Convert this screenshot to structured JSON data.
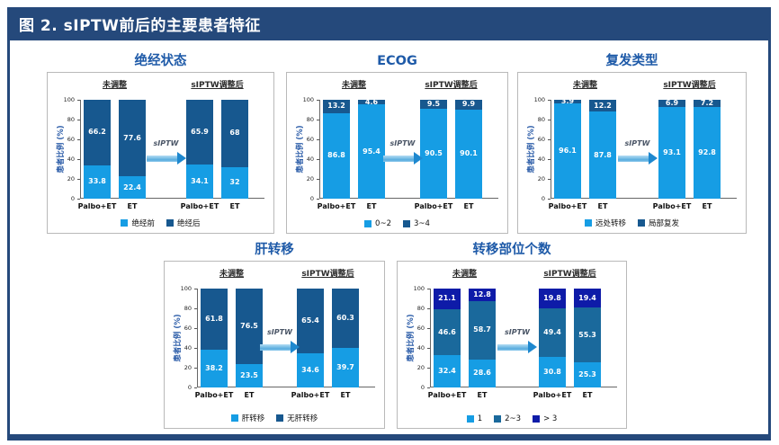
{
  "header": {
    "title": "图 2. sIPTW前后的主要患者特征"
  },
  "palette": {
    "frame_navy": "#25497B",
    "title_blue": "#1E5AA8",
    "light": "#169DE4",
    "dark": "#17588F",
    "mid": "#1A699C",
    "navy": "#0E1BA8",
    "arrow_head": "#1E88CF"
  },
  "common": {
    "ylabel": "患者比例 (%)",
    "yticks": [
      0,
      20,
      40,
      60,
      80,
      100
    ],
    "arrow_label": "sIPTW",
    "group_labels": [
      "未调整",
      "sIPTW调整后"
    ],
    "bar_names": [
      "Palbo+ET",
      "ET"
    ]
  },
  "chart_data": [
    {
      "type": "bar",
      "stacked": true,
      "title": "绝经状态",
      "legend": [
        "绝经前",
        "绝经后"
      ],
      "segment_colors": [
        "light",
        "dark"
      ],
      "ylabel": "患者比例 (%)",
      "ylim": [
        0,
        100
      ],
      "groups": [
        {
          "label": "未调整",
          "bars": [
            {
              "name": "Palbo+ET",
              "values": [
                33.8,
                66.2
              ]
            },
            {
              "name": "ET",
              "values": [
                22.4,
                77.6
              ]
            }
          ]
        },
        {
          "label": "sIPTW调整后",
          "bars": [
            {
              "name": "Palbo+ET",
              "values": [
                34.1,
                65.9
              ]
            },
            {
              "name": "ET",
              "values": [
                32,
                68
              ]
            }
          ]
        }
      ]
    },
    {
      "type": "bar",
      "stacked": true,
      "title": "ECOG",
      "legend": [
        "0~2",
        "3~4"
      ],
      "segment_colors": [
        "light",
        "dark"
      ],
      "ylabel": "患者比例 (%)",
      "ylim": [
        0,
        100
      ],
      "groups": [
        {
          "label": "未调整",
          "bars": [
            {
              "name": "Palbo+ET",
              "values": [
                86.8,
                13.2
              ]
            },
            {
              "name": "ET",
              "values": [
                95.4,
                4.6
              ]
            }
          ]
        },
        {
          "label": "sIPTW调整后",
          "bars": [
            {
              "name": "Palbo+ET",
              "values": [
                90.5,
                9.5
              ]
            },
            {
              "name": "ET",
              "values": [
                90.1,
                9.9
              ]
            }
          ]
        }
      ]
    },
    {
      "type": "bar",
      "stacked": true,
      "title": "复发类型",
      "legend": [
        "远处转移",
        "局部复发"
      ],
      "segment_colors": [
        "light",
        "dark"
      ],
      "ylabel": "患者比例 (%)",
      "ylim": [
        0,
        100
      ],
      "groups": [
        {
          "label": "未调整",
          "bars": [
            {
              "name": "Palbo+ET",
              "values": [
                96.1,
                3.9
              ]
            },
            {
              "name": "ET",
              "values": [
                87.8,
                12.2
              ]
            }
          ]
        },
        {
          "label": "sIPTW调整后",
          "bars": [
            {
              "name": "Palbo+ET",
              "values": [
                93.1,
                6.9
              ]
            },
            {
              "name": "ET",
              "values": [
                92.8,
                7.2
              ]
            }
          ]
        }
      ]
    },
    {
      "type": "bar",
      "stacked": true,
      "title": "肝转移",
      "legend": [
        "肝转移",
        "无肝转移"
      ],
      "segment_colors": [
        "light",
        "dark"
      ],
      "ylabel": "患者比例 (%)",
      "ylim": [
        0,
        100
      ],
      "groups": [
        {
          "label": "未调整",
          "bars": [
            {
              "name": "Palbo+ET",
              "values": [
                38.2,
                61.8
              ]
            },
            {
              "name": "ET",
              "values": [
                23.5,
                76.5
              ]
            }
          ]
        },
        {
          "label": "sIPTW调整后",
          "bars": [
            {
              "name": "Palbo+ET",
              "values": [
                34.6,
                65.4
              ]
            },
            {
              "name": "ET",
              "values": [
                39.7,
                60.3
              ]
            }
          ]
        }
      ]
    },
    {
      "type": "bar",
      "stacked": true,
      "title": "转移部位个数",
      "legend": [
        "1",
        "2~3",
        "> 3"
      ],
      "segment_colors": [
        "light",
        "mid",
        "navy"
      ],
      "ylabel": "患者比例 (%)",
      "ylim": [
        0,
        100
      ],
      "groups": [
        {
          "label": "未调整",
          "bars": [
            {
              "name": "Palbo+ET",
              "values": [
                32.4,
                46.6,
                21.1
              ]
            },
            {
              "name": "ET",
              "values": [
                28.6,
                58.7,
                12.8
              ]
            }
          ]
        },
        {
          "label": "sIPTW调整后",
          "bars": [
            {
              "name": "Palbo+ET",
              "values": [
                30.8,
                49.4,
                19.8
              ]
            },
            {
              "name": "ET",
              "values": [
                25.3,
                55.3,
                19.4
              ]
            }
          ]
        }
      ]
    }
  ]
}
